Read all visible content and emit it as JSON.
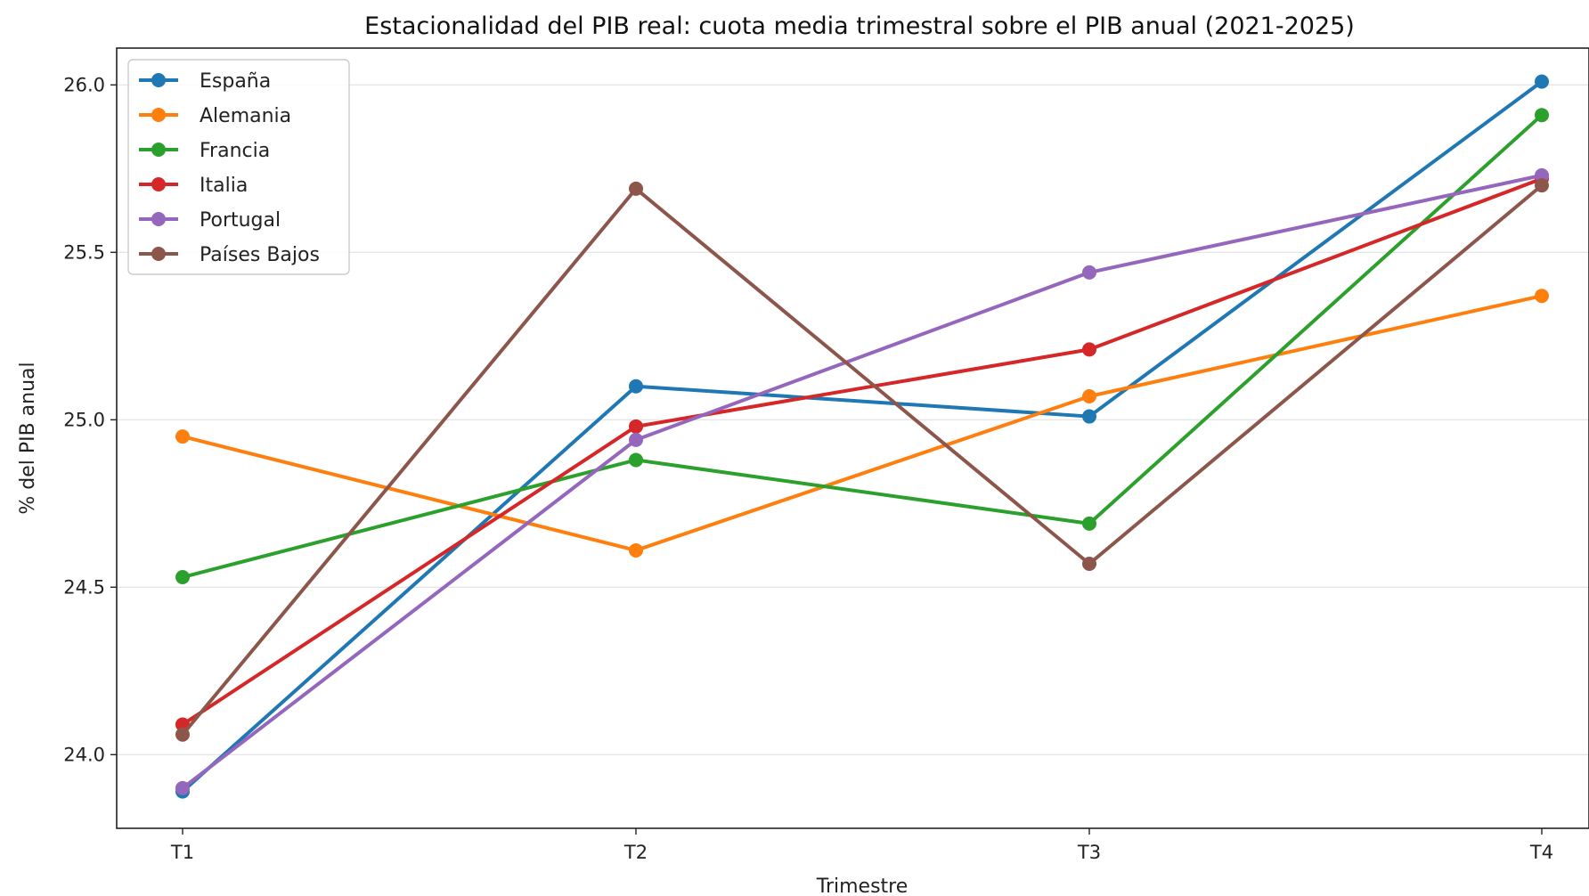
{
  "chart_data": {
    "type": "line",
    "title": "Estacionalidad del PIB real: cuota media trimestral sobre el PIB anual (2021-2025)",
    "xlabel": "Trimestre",
    "ylabel": "% del PIB anual",
    "categories": [
      "T1",
      "T2",
      "T3",
      "T4"
    ],
    "ylim": [
      23.78,
      26.11
    ],
    "yticks": [
      "24.0",
      "24.5",
      "25.0",
      "25.5",
      "26.0"
    ],
    "grid": "horizontal",
    "legend_position": "top-left",
    "series": [
      {
        "name": "España",
        "color": "#1f77b4",
        "values": [
          23.89,
          25.1,
          25.01,
          26.01
        ]
      },
      {
        "name": "Alemania",
        "color": "#ff7f0e",
        "values": [
          24.95,
          24.61,
          25.07,
          25.37
        ]
      },
      {
        "name": "Francia",
        "color": "#2ca02c",
        "values": [
          24.53,
          24.88,
          24.69,
          25.91
        ]
      },
      {
        "name": "Italia",
        "color": "#d62728",
        "values": [
          24.09,
          24.98,
          25.21,
          25.72
        ]
      },
      {
        "name": "Portugal",
        "color": "#9467bd",
        "values": [
          23.9,
          24.94,
          25.44,
          25.73
        ]
      },
      {
        "name": "Países Bajos",
        "color": "#8c564b",
        "values": [
          24.06,
          25.69,
          24.57,
          25.7
        ]
      }
    ]
  }
}
